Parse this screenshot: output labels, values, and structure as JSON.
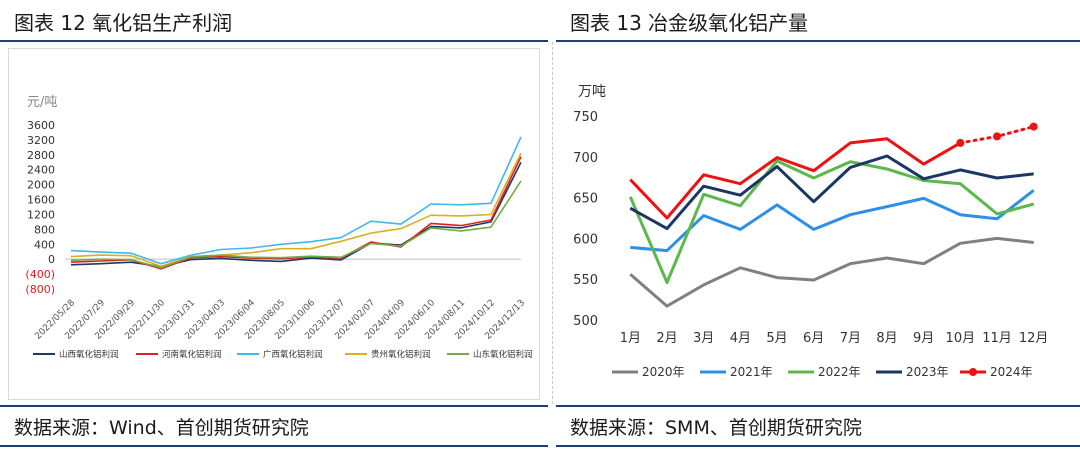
{
  "left_panel": {
    "title": "图表 12 氧化铝生产利润",
    "source": "数据来源：Wind、首创期货研究院"
  },
  "right_panel": {
    "title": "图表 13 冶金级氧化铝产量",
    "source": "数据来源：SMM、首创期货研究院"
  },
  "chart_data": [
    {
      "type": "line",
      "unit_label": "元/吨",
      "ylim": [
        -800,
        3600
      ],
      "yticks": [
        "3600",
        "3200",
        "2800",
        "2400",
        "2000",
        "1600",
        "1200",
        "800",
        "400",
        "0",
        "(400)",
        "(800)"
      ],
      "ytick_values": [
        3600,
        3200,
        2800,
        2400,
        2000,
        1600,
        1200,
        800,
        400,
        0,
        -400,
        -800
      ],
      "negative_tick_color": "#e02020",
      "x_tick_labels": [
        "2022/05/28",
        "2022/07/29",
        "2022/09/29",
        "2022/11/30",
        "2023/01/31",
        "2023/04/03",
        "2023/06/04",
        "2023/08/05",
        "2023/10/06",
        "2023/12/07",
        "2024/02/07",
        "2024/04/09",
        "2024/06/10",
        "2024/08/11",
        "2024/10/12",
        "2024/12/13"
      ],
      "series": [
        {
          "name": "山西氧化铝利润",
          "color": "#1f3864",
          "values": [
            -150,
            -120,
            -80,
            -200,
            -10,
            20,
            -30,
            -60,
            30,
            -20,
            430,
            380,
            880,
            840,
            1000,
            2600
          ]
        },
        {
          "name": "河南氧化铝利润",
          "color": "#e02020",
          "values": [
            -80,
            -50,
            -20,
            -260,
            40,
            70,
            30,
            10,
            60,
            30,
            460,
            330,
            960,
            900,
            1050,
            2750
          ]
        },
        {
          "name": "广西氧化铝利润",
          "color": "#40b8e8",
          "values": [
            230,
            190,
            160,
            -120,
            110,
            260,
            300,
            400,
            470,
            580,
            1020,
            940,
            1480,
            1460,
            1500,
            3280
          ]
        },
        {
          "name": "贵州氧化铝利润",
          "color": "#d9b020",
          "values": [
            70,
            110,
            90,
            -190,
            70,
            110,
            170,
            280,
            280,
            480,
            700,
            820,
            1180,
            1160,
            1200,
            2850
          ]
        },
        {
          "name": "山东氧化铝利润",
          "color": "#70ad47",
          "values": [
            -30,
            0,
            -10,
            -230,
            60,
            110,
            50,
            40,
            80,
            50,
            420,
            350,
            840,
            760,
            860,
            2100
          ]
        }
      ]
    },
    {
      "type": "line",
      "unit_label": "万吨",
      "ylim": [
        500,
        750
      ],
      "yticks": [
        "750",
        "700",
        "650",
        "600",
        "550",
        "500"
      ],
      "ytick_values": [
        750,
        700,
        650,
        600,
        550,
        500
      ],
      "categories": [
        "1月",
        "2月",
        "3月",
        "4月",
        "5月",
        "6月",
        "7月",
        "8月",
        "9月",
        "10月",
        "11月",
        "12月"
      ],
      "series": [
        {
          "name": "2020年",
          "color": "#808080",
          "values": [
            556,
            517,
            543,
            564,
            552,
            549,
            569,
            576,
            569,
            594,
            600,
            595
          ]
        },
        {
          "name": "2021年",
          "color": "#2e8fe8",
          "values": [
            589,
            585,
            628,
            611,
            641,
            611,
            629,
            639,
            649,
            629,
            624,
            659
          ]
        },
        {
          "name": "2022年",
          "color": "#5bb84a",
          "values": [
            651,
            546,
            654,
            640,
            695,
            674,
            694,
            685,
            671,
            667,
            630,
            642
          ]
        },
        {
          "name": "2023年",
          "color": "#1b3565",
          "values": [
            637,
            612,
            664,
            653,
            688,
            645,
            687,
            701,
            673,
            684,
            674,
            679
          ]
        },
        {
          "name": "2024年",
          "color": "#ee1111",
          "values": [
            672,
            625,
            678,
            667,
            699,
            683,
            717,
            722,
            691,
            717,
            725,
            737
          ],
          "dotted_from_index": 9
        }
      ]
    }
  ]
}
